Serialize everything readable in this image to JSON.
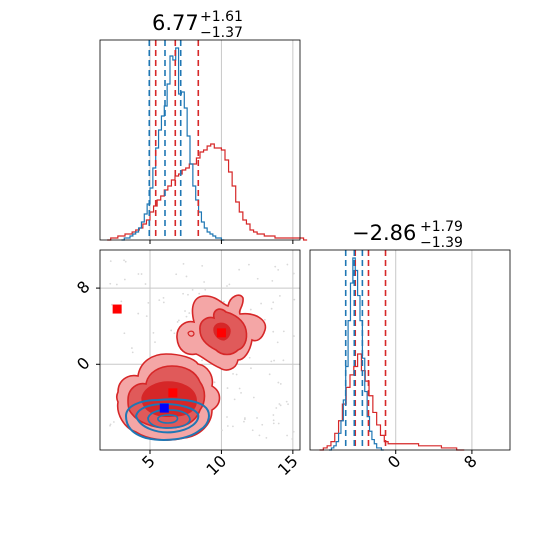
{
  "chart_data": {
    "type": "corner",
    "colors": {
      "red": "#d62728",
      "red_fill": "#f4a6a6",
      "red_mid": "#e05a5a",
      "blue": "#1f77b4",
      "marker_blue": "#0000ff",
      "marker_red": "#ff0000",
      "grid": "#c8c8c8"
    },
    "param1": {
      "title": {
        "value": "6.77",
        "plus": "+1.61",
        "minus": "−1.37"
      },
      "xlim": [
        1.5,
        15.5
      ],
      "ticks": [
        5,
        10,
        15
      ],
      "tick_labels": [
        "5",
        "10",
        "15"
      ],
      "red_quantiles": [
        5.4,
        6.77,
        8.38
      ],
      "blue_quantiles": [
        4.95,
        6.05,
        7.15
      ],
      "red_hist": {
        "bin_start": 2.0,
        "bin_width": 0.25,
        "heights": [
          0,
          1,
          1,
          2,
          2,
          3,
          3,
          4,
          5,
          6,
          8,
          10,
          14,
          17,
          20,
          22,
          25,
          27,
          30,
          32,
          33,
          35,
          36,
          38,
          38,
          41,
          44,
          45,
          47,
          48,
          46,
          46,
          45,
          40,
          34,
          27,
          19,
          14,
          10,
          8,
          5,
          4,
          3,
          3,
          2,
          2,
          2,
          1,
          1,
          1,
          1,
          1,
          1,
          1,
          1,
          0
        ]
      },
      "blue_hist": {
        "bin_start": 3.0,
        "bin_width": 0.2,
        "heights": [
          0,
          1,
          1,
          2,
          3,
          4,
          6,
          9,
          13,
          18,
          26,
          36,
          46,
          55,
          62,
          67,
          78,
          92,
          90,
          96,
          73,
          74,
          66,
          52,
          38,
          27,
          20,
          14,
          9,
          6,
          4,
          3,
          2,
          1,
          1,
          0
        ]
      }
    },
    "param2": {
      "title": {
        "value": "−2.86",
        "plus": "+1.79",
        "minus": "−1.39"
      },
      "xlim": [
        -9,
        12
      ],
      "ticks": [
        0,
        8
      ],
      "tick_labels": [
        "0",
        "8"
      ],
      "red_quantiles": [
        -4.25,
        -2.86,
        -1.07
      ],
      "blue_quantiles": [
        -5.25,
        -4.35,
        -3.5
      ],
      "red_hist": {
        "bin_start": -8.0,
        "bin_width": 0.4,
        "heights": [
          0,
          1,
          2,
          4,
          8,
          14,
          22,
          30,
          36,
          40,
          46,
          38,
          33,
          26,
          18,
          12,
          7,
          4,
          3,
          3,
          3,
          3,
          3,
          3,
          3,
          3,
          2,
          2,
          2,
          2,
          2,
          2,
          1,
          1,
          1,
          1,
          0,
          0
        ]
      },
      "blue_hist": {
        "bin_start": -7.0,
        "bin_width": 0.25,
        "heights": [
          0,
          1,
          2,
          4,
          8,
          14,
          24,
          40,
          62,
          80,
          92,
          86,
          74,
          62,
          44,
          28,
          16,
          9,
          5,
          3,
          1,
          1,
          0
        ]
      }
    },
    "joint": {
      "xlim": [
        1.5,
        15.5
      ],
      "ylim": [
        -9,
        12
      ],
      "xticks": [
        5,
        10,
        15
      ],
      "yticks": [
        0,
        8
      ],
      "ytick_labels": [
        "0",
        "8"
      ],
      "markers": [
        {
          "x": 2.7,
          "y": 5.8,
          "color": "marker_red"
        },
        {
          "x": 10.0,
          "y": 3.3,
          "color": "marker_red"
        },
        {
          "x": 6.6,
          "y": -3.0,
          "color": "marker_red"
        },
        {
          "x": 6.0,
          "y": -4.6,
          "color": "marker_blue"
        }
      ]
    }
  }
}
